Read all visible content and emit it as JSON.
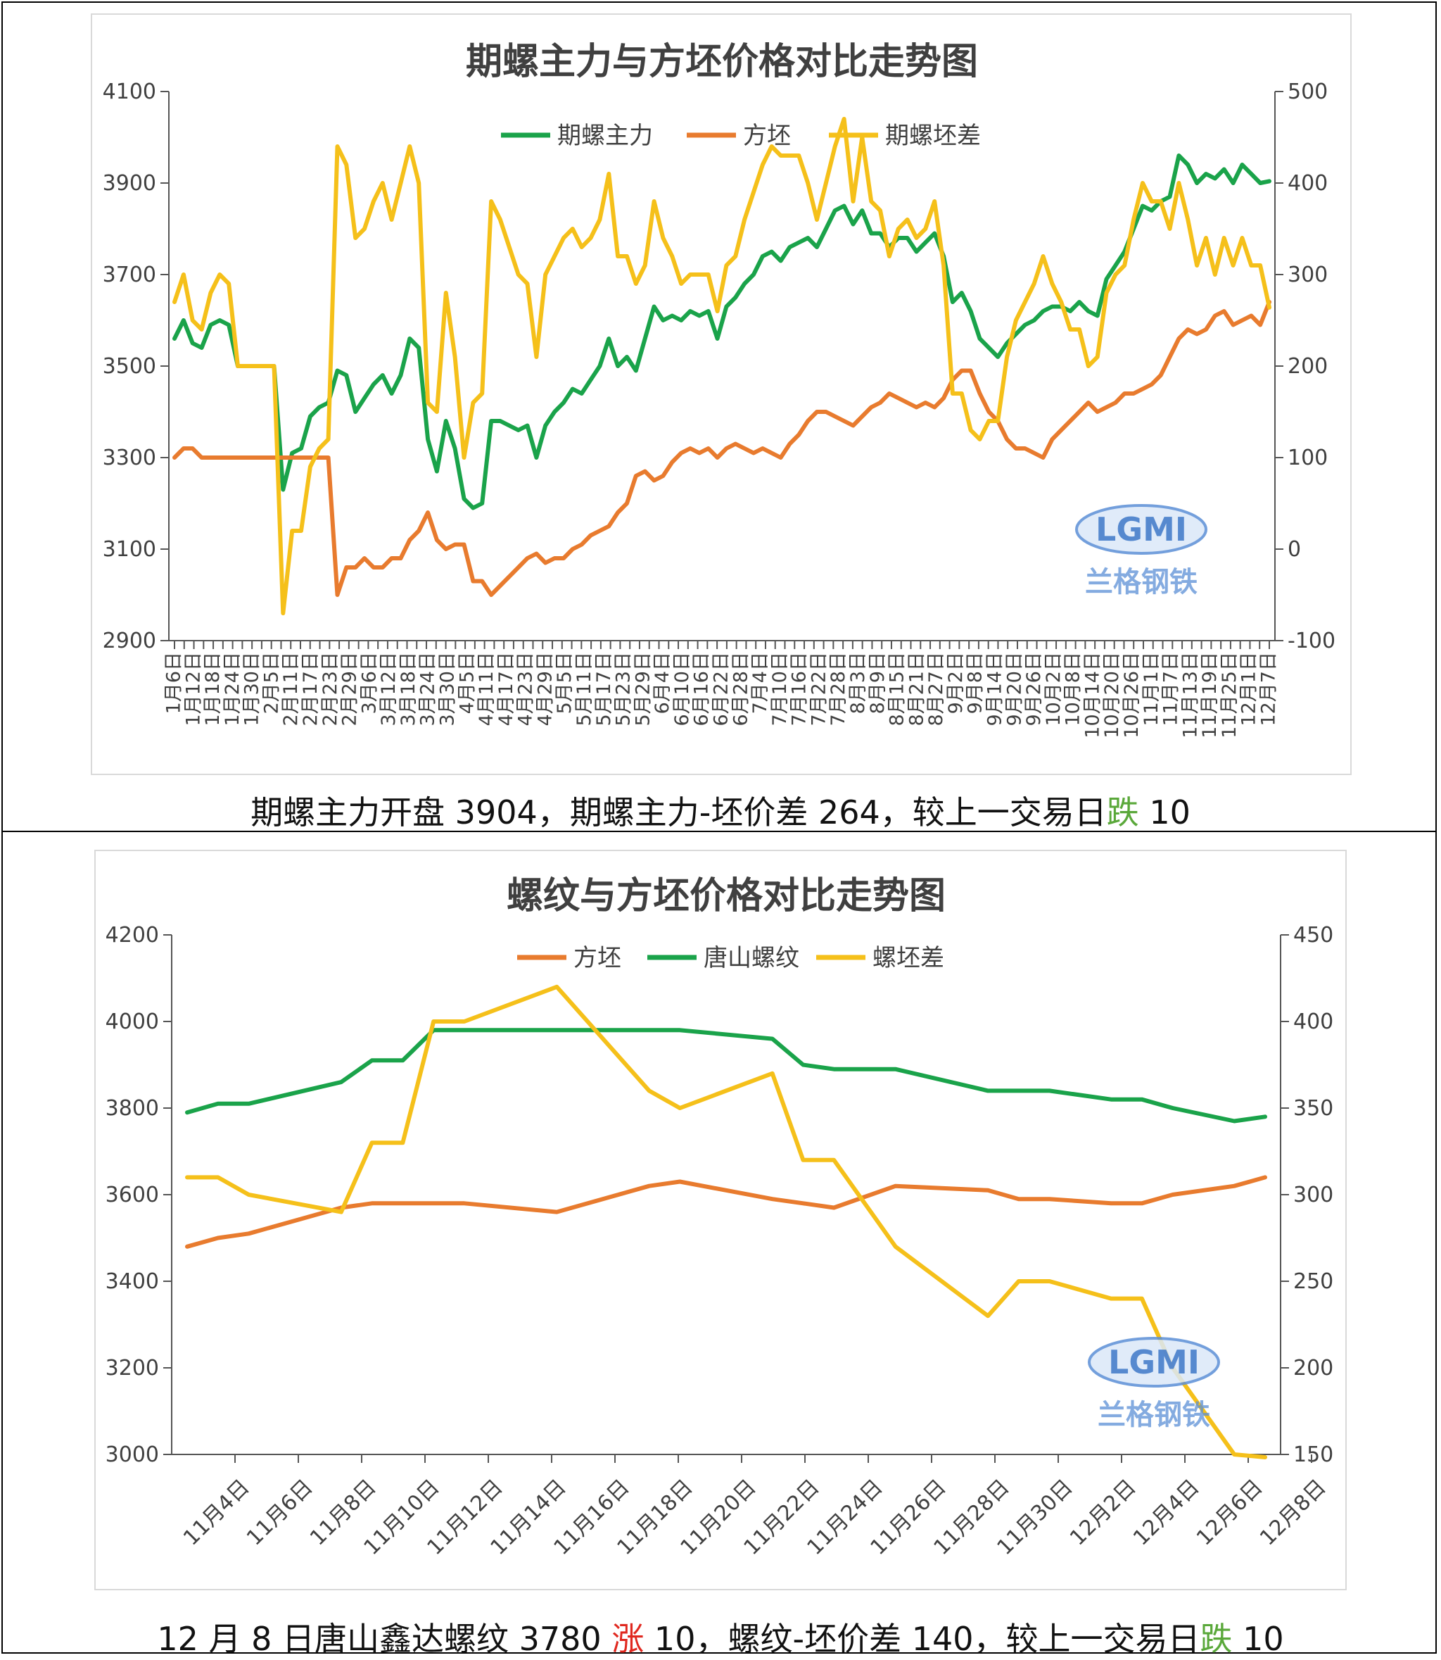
{
  "colors": {
    "green": "#1aa34a",
    "orange": "#e87b2e",
    "yellow": "#f5c01a",
    "axis": "#555555",
    "text": "#404040",
    "down": "#5aa83a",
    "up": "#e0281f"
  },
  "captions": {
    "top": {
      "a": "期螺主力开盘 3904，期螺主力-坯价差 264，较上一交易日",
      "dir": "跌",
      "b": " 10"
    },
    "bottom": {
      "a": "12 月 8 日唐山鑫达螺纹 3780 ",
      "dir1": "涨",
      "b": " 10，螺纹-坯价差 140，较上一交易日",
      "dir2": "跌",
      "c": " 10"
    }
  },
  "chart_data": [
    {
      "type": "line",
      "title": "期螺主力与方坯价格对比走势图",
      "legend": [
        "期螺主力",
        "方坯",
        "期螺坯差"
      ],
      "watermark": "LGMI 兰格钢铁",
      "y_left": {
        "min": 2900,
        "max": 4100,
        "ticks": [
          2900,
          3100,
          3300,
          3500,
          3700,
          3900,
          4100
        ]
      },
      "y_right": {
        "min": -100,
        "max": 500,
        "ticks": [
          -100,
          0,
          100,
          200,
          300,
          400,
          500
        ]
      },
      "x_labels": [
        "1月6日",
        "1月12日",
        "1月18日",
        "1月24日",
        "1月30日",
        "2月5日",
        "2月11日",
        "2月17日",
        "2月23日",
        "2月29日",
        "3月6日",
        "3月12日",
        "3月18日",
        "3月24日",
        "3月30日",
        "4月5日",
        "4月11日",
        "4月17日",
        "4月23日",
        "4月29日",
        "5月5日",
        "5月11日",
        "5月17日",
        "5月23日",
        "5月29日",
        "6月4日",
        "6月10日",
        "6月16日",
        "6月22日",
        "6月28日",
        "7月4日",
        "7月10日",
        "7月16日",
        "7月22日",
        "7月28日",
        "8月3日",
        "8月9日",
        "8月15日",
        "8月21日",
        "8月27日",
        "9月2日",
        "9月8日",
        "9月14日",
        "9月20日",
        "9月26日",
        "10月2日",
        "10月8日",
        "10月14日",
        "10月20日",
        "10月26日",
        "11月1日",
        "11月7日",
        "11月13日",
        "11月19日",
        "11月25日",
        "12月1日",
        "12月7日"
      ],
      "series": [
        {
          "name": "期螺主力",
          "axis": "left",
          "color": "green",
          "values": [
            3560,
            3600,
            3550,
            3540,
            3590,
            3600,
            3590,
            3500,
            3500,
            3500,
            3500,
            3500,
            3230,
            3310,
            3320,
            3390,
            3410,
            3420,
            3490,
            3480,
            3400,
            3430,
            3460,
            3480,
            3440,
            3480,
            3560,
            3540,
            3340,
            3270,
            3380,
            3320,
            3210,
            3190,
            3200,
            3380,
            3380,
            3370,
            3360,
            3370,
            3300,
            3370,
            3400,
            3420,
            3450,
            3440,
            3470,
            3500,
            3560,
            3500,
            3520,
            3490,
            3560,
            3630,
            3600,
            3610,
            3600,
            3620,
            3610,
            3620,
            3560,
            3630,
            3650,
            3680,
            3700,
            3740,
            3750,
            3730,
            3760,
            3770,
            3780,
            3760,
            3800,
            3840,
            3850,
            3810,
            3840,
            3790,
            3790,
            3760,
            3780,
            3780,
            3750,
            3770,
            3790,
            3740,
            3640,
            3660,
            3620,
            3560,
            3540,
            3520,
            3550,
            3570,
            3590,
            3600,
            3620,
            3630,
            3630,
            3620,
            3640,
            3620,
            3610,
            3690,
            3720,
            3750,
            3800,
            3850,
            3840,
            3860,
            3870,
            3960,
            3940,
            3900,
            3920,
            3910,
            3930,
            3900,
            3940,
            3920,
            3900,
            3904
          ]
        },
        {
          "name": "方坯",
          "axis": "left",
          "color": "orange",
          "values": [
            3300,
            3320,
            3320,
            3300,
            3300,
            3300,
            3300,
            3300,
            3300,
            3300,
            3300,
            3300,
            3300,
            3300,
            3300,
            3300,
            3300,
            3300,
            3000,
            3060,
            3060,
            3080,
            3060,
            3060,
            3080,
            3080,
            3120,
            3140,
            3180,
            3120,
            3100,
            3110,
            3110,
            3030,
            3030,
            3000,
            3020,
            3040,
            3060,
            3080,
            3090,
            3070,
            3080,
            3080,
            3100,
            3110,
            3130,
            3140,
            3150,
            3180,
            3200,
            3260,
            3270,
            3250,
            3260,
            3290,
            3310,
            3320,
            3310,
            3320,
            3300,
            3320,
            3330,
            3320,
            3310,
            3320,
            3310,
            3300,
            3330,
            3350,
            3380,
            3400,
            3400,
            3390,
            3380,
            3370,
            3390,
            3410,
            3420,
            3440,
            3430,
            3420,
            3410,
            3420,
            3410,
            3430,
            3470,
            3490,
            3490,
            3440,
            3400,
            3380,
            3340,
            3320,
            3320,
            3310,
            3300,
            3340,
            3360,
            3380,
            3400,
            3420,
            3400,
            3410,
            3420,
            3440,
            3440,
            3450,
            3460,
            3480,
            3520,
            3560,
            3580,
            3570,
            3580,
            3610,
            3620,
            3590,
            3600,
            3610,
            3590,
            3640
          ]
        },
        {
          "name": "期螺坯差",
          "axis": "right",
          "color": "yellow",
          "values": [
            270,
            300,
            250,
            240,
            280,
            300,
            290,
            200,
            200,
            200,
            200,
            200,
            -70,
            20,
            20,
            90,
            110,
            120,
            440,
            420,
            340,
            350,
            380,
            400,
            360,
            400,
            440,
            400,
            160,
            150,
            280,
            210,
            100,
            160,
            170,
            380,
            360,
            330,
            300,
            290,
            210,
            300,
            320,
            340,
            350,
            330,
            340,
            360,
            410,
            320,
            320,
            290,
            310,
            380,
            340,
            320,
            290,
            300,
            300,
            300,
            260,
            310,
            320,
            360,
            390,
            420,
            440,
            430,
            430,
            430,
            400,
            360,
            400,
            440,
            470,
            380,
            450,
            380,
            370,
            320,
            350,
            360,
            340,
            350,
            380,
            310,
            170,
            170,
            130,
            120,
            140,
            140,
            210,
            250,
            270,
            290,
            320,
            290,
            270,
            240,
            240,
            200,
            210,
            280,
            300,
            310,
            360,
            400,
            380,
            380,
            350,
            400,
            360,
            310,
            340,
            300,
            340,
            310,
            340,
            310,
            310,
            264
          ]
        }
      ]
    },
    {
      "type": "line",
      "title": "螺纹与方坯价格对比走势图",
      "legend": [
        "方坯",
        "唐山螺纹",
        "螺坯差"
      ],
      "watermark": "LGMI 兰格钢铁",
      "y_left": {
        "min": 3000,
        "max": 4200,
        "ticks": [
          3000,
          3200,
          3400,
          3600,
          3800,
          4000,
          4200
        ]
      },
      "y_right": {
        "min": 150,
        "max": 450,
        "ticks": [
          150,
          200,
          250,
          300,
          350,
          400,
          450
        ]
      },
      "x_labels": [
        "11月4日",
        "11月6日",
        "11月8日",
        "11月10日",
        "11月12日",
        "11月14日",
        "11月16日",
        "11月18日",
        "11月20日",
        "11月22日",
        "11月24日",
        "11月26日",
        "11月28日",
        "11月30日",
        "12月2日",
        "12月4日",
        "12月6日",
        "12月8日"
      ],
      "x_days": [
        4,
        5,
        6,
        9,
        10,
        11,
        12,
        13,
        16,
        19,
        20,
        23,
        24,
        25,
        27,
        30,
        31,
        32,
        34,
        35,
        36,
        38,
        39
      ],
      "series": [
        {
          "name": "方坯",
          "axis": "left",
          "color": "orange",
          "values": [
            3480,
            3500,
            3510,
            3570,
            3580,
            3580,
            3580,
            3580,
            3560,
            3620,
            3630,
            3590,
            3580,
            3570,
            3620,
            3610,
            3590,
            3590,
            3580,
            3580,
            3600,
            3620,
            3640
          ]
        },
        {
          "name": "唐山螺纹",
          "axis": "left",
          "color": "green",
          "values": [
            3790,
            3810,
            3810,
            3860,
            3910,
            3910,
            3980,
            3980,
            3980,
            3980,
            3980,
            3960,
            3900,
            3890,
            3890,
            3840,
            3840,
            3840,
            3820,
            3820,
            3800,
            3770,
            3780
          ]
        },
        {
          "name": "螺坯差",
          "axis": "right",
          "color": "yellow",
          "values": [
            310,
            310,
            300,
            290,
            330,
            330,
            400,
            400,
            420,
            360,
            350,
            370,
            320,
            320,
            270,
            230,
            250,
            250,
            240,
            240,
            200,
            150,
            140
          ]
        }
      ]
    }
  ]
}
